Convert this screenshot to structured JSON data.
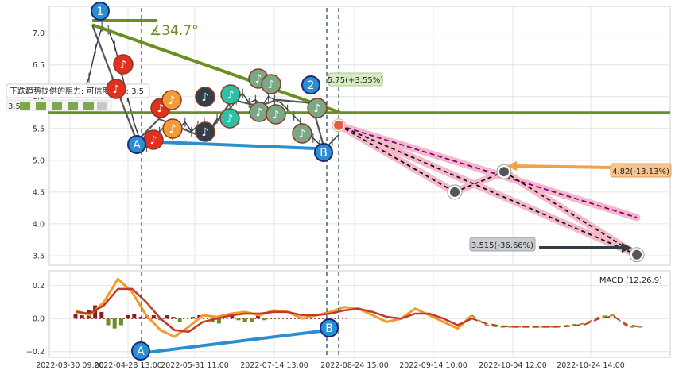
{
  "chart_data": [
    {
      "type": "line",
      "panel": "price",
      "ylim": [
        3.35,
        7.42
      ],
      "yticks": [
        "7.0",
        "6.5",
        "6.0",
        "5.5",
        "5.0",
        "4.5",
        "4.0",
        "3.5"
      ],
      "ytick_values": [
        7.0,
        6.5,
        6.0,
        5.5,
        5.0,
        4.5,
        4.0,
        3.5
      ],
      "series": [
        {
          "values": [
            6.05,
            6.3,
            6.75,
            7.1,
            7.05,
            6.8,
            6.4,
            6.0,
            5.6,
            5.3,
            5.2,
            5.35,
            5.45,
            5.55,
            5.4,
            5.5,
            5.6,
            5.45,
            5.55,
            5.6,
            5.5,
            5.65,
            5.7,
            5.8,
            5.95,
            6.05,
            5.9,
            5.95,
            5.85,
            6.0,
            5.95,
            5.9,
            5.8,
            5.7,
            5.6,
            5.45,
            5.35,
            5.25,
            5.2,
            5.3,
            5.4
          ]
        }
      ],
      "annotations": {
        "angle_label": "∡34.7°",
        "support_text": "下跌趋势提供的阻力: 可信度评分: 3.5",
        "support_score": "3.5",
        "label_upper": "5.75(+3.55%)",
        "label_mid": "4.82(-13.13%)",
        "label_low": "3.515(-36.66%)",
        "pivot_1": "1",
        "pivot_2": "2",
        "pivot_a": "A",
        "pivot_b": "B",
        "trend_start_price": 7.13,
        "trend_end_price": 5.75,
        "horizontal_level": 5.75,
        "lower_line_start": 5.3,
        "lower_line_end": 5.18,
        "proj_current": 5.55,
        "proj_mid_low": 4.5,
        "proj_mid": 4.82,
        "proj_low": 3.515,
        "proj_upper_end": 4.1
      },
      "colors": {
        "price": "#2f3b45",
        "trend": "#6b8e23",
        "support": "#2a8fd0",
        "proj": "#f4b8c8",
        "dash": "#800080",
        "arrow_mid": "#f0a050",
        "arrow_low": "#333d45"
      }
    },
    {
      "type": "line",
      "panel": "macd",
      "title": "MACD (12,26,9)",
      "ylim": [
        -0.235,
        0.29
      ],
      "yticks": [
        "0.2",
        "0.0",
        "−0.2"
      ],
      "ytick_values": [
        0.2,
        0.0,
        -0.2
      ],
      "series": [
        {
          "values": [
            0.05,
            0.02,
            0.1,
            0.24,
            0.16,
            0.02,
            -0.07,
            -0.11,
            -0.05,
            0.02,
            0.01,
            0.03,
            0.04,
            0.02,
            0.05,
            0.04,
            0.0,
            0.02,
            0.04,
            0.07,
            0.06,
            0.02,
            -0.02,
            0.0,
            0.06,
            0.02,
            -0.02,
            -0.06,
            0.02,
            -0.04,
            -0.05,
            -0.05,
            -0.05,
            -0.05,
            -0.05,
            -0.04,
            -0.03,
            0.01,
            0.02,
            -0.05,
            -0.05
          ]
        },
        {
          "values": [
            0.04,
            0.03,
            0.08,
            0.18,
            0.18,
            0.1,
            0.0,
            -0.07,
            -0.08,
            -0.02,
            0.0,
            0.02,
            0.03,
            0.03,
            0.04,
            0.04,
            0.02,
            0.02,
            0.03,
            0.05,
            0.06,
            0.04,
            0.01,
            0.0,
            0.03,
            0.03,
            0.0,
            -0.04,
            0.0,
            -0.03,
            -0.045,
            -0.05,
            -0.05,
            -0.05,
            -0.05,
            -0.045,
            -0.035,
            0.0,
            0.015,
            -0.04,
            -0.05
          ]
        }
      ],
      "annotations": {
        "pivot_a": "A",
        "pivot_b": "B"
      }
    }
  ],
  "x_axis": {
    "ticks": [
      "2022-03-30 09:00",
      "2022-04-28 13:00",
      "2022-05-31 11:00",
      "2022-07-14 13:00",
      "2022-08-24 15:00",
      "2022-09-14 10:00",
      "2022-10-04 12:00",
      "2022-10-24 14:00"
    ]
  }
}
